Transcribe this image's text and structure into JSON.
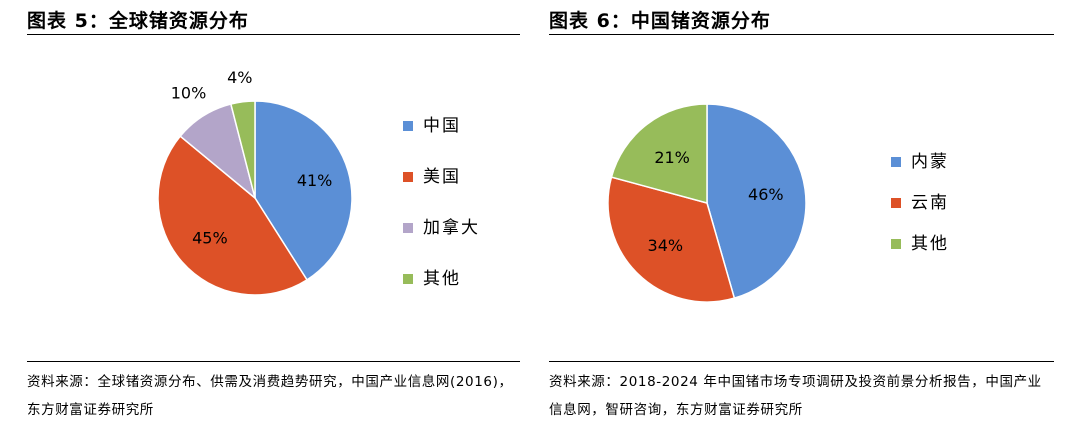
{
  "chart_data": [
    {
      "type": "pie",
      "title": "图表 5：全球锗资源分布",
      "slices": [
        {
          "label": "中国",
          "value": 41,
          "display": "41%",
          "color": "#5B8FD6"
        },
        {
          "label": "美国",
          "value": 45,
          "display": "45%",
          "color": "#DD5127"
        },
        {
          "label": "加拿大",
          "value": 10,
          "display": "10%",
          "color": "#B3A5C9"
        },
        {
          "label": "其他",
          "value": 4,
          "display": "4%",
          "color": "#97BC5A"
        }
      ],
      "legend_position": "right",
      "source": "资料来源：全球锗资源分布、供需及消费趋势研究，中国产业信息网(2016)，东方财富证券研究所"
    },
    {
      "type": "pie",
      "title": "图表 6：中国锗资源分布",
      "slices": [
        {
          "label": "内蒙",
          "value": 46,
          "display": "46%",
          "color": "#5B8FD6"
        },
        {
          "label": "云南",
          "value": 34,
          "display": "34%",
          "color": "#DD5127"
        },
        {
          "label": "其他",
          "value": 21,
          "display": "21%",
          "color": "#97BC5A"
        }
      ],
      "legend_position": "right",
      "source": "资料来源：2018-2024 年中国锗市场专项调研及投资前景分析报告，中国产业信息网，智研咨询，东方财富证券研究所"
    }
  ]
}
